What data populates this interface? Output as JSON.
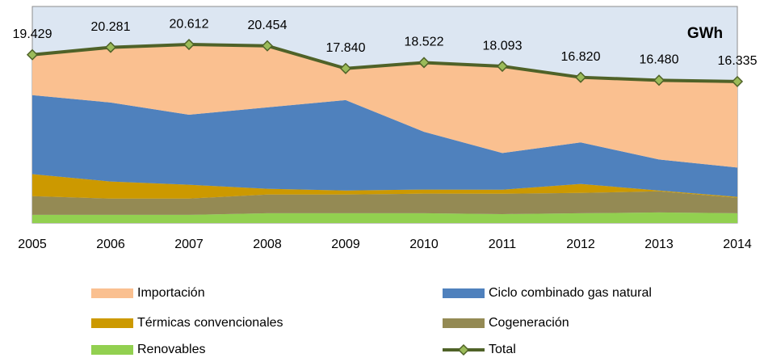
{
  "chart_data": {
    "type": "stacked_area",
    "annotation": "GWh",
    "categories": [
      "2005",
      "2006",
      "2007",
      "2008",
      "2009",
      "2010",
      "2011",
      "2012",
      "2013",
      "2014"
    ],
    "ylim": [
      0,
      25000
    ],
    "background": "#dce6f2",
    "series": [
      {
        "name": "Renovables",
        "color": "#92d050",
        "values": [
          940,
          940,
          940,
          1130,
          1130,
          1130,
          1030,
          1130,
          1220,
          1130
        ]
      },
      {
        "name": "Cogeneración",
        "color": "#948a54",
        "values": [
          2160,
          1880,
          1880,
          2160,
          2160,
          2260,
          2350,
          2350,
          2440,
          1790
        ]
      },
      {
        "name": "Térmicas convencionales",
        "color": "#cc9900",
        "values": [
          2540,
          1970,
          1600,
          660,
          470,
          470,
          470,
          1030,
          100,
          100
        ]
      },
      {
        "name": "Ciclo combinado gas natural",
        "color": "#4f81bd",
        "values": [
          9120,
          9120,
          8080,
          9400,
          10430,
          6670,
          4230,
          4790,
          3570,
          3380
        ]
      },
      {
        "name": "Importación",
        "color": "#fac090",
        "values": [
          4669,
          6371,
          8112,
          7104,
          3650,
          7992,
          10013,
          7520,
          9150,
          9935
        ]
      }
    ],
    "total": {
      "name": "Total",
      "type": "line",
      "color": "#4f6228",
      "marker_color": "#9bbb59",
      "values": [
        19429,
        20281,
        20612,
        20454,
        17840,
        18522,
        18093,
        16820,
        16480,
        16335
      ],
      "value_labels": [
        "19.429",
        "20.281",
        "20.612",
        "20.454",
        "17.840",
        "18.522",
        "18.093",
        "16.820",
        "16.480",
        "16.335"
      ]
    },
    "legend_order": [
      4,
      3,
      2,
      1,
      0
    ]
  }
}
